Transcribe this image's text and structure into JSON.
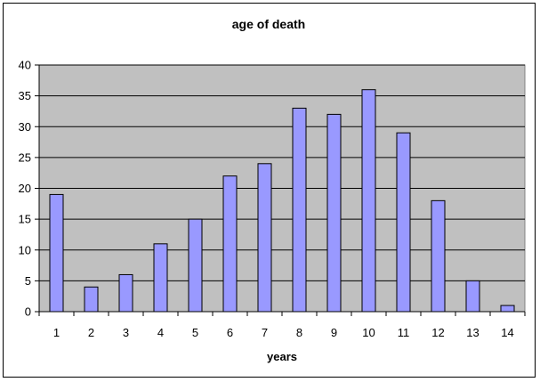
{
  "chart_data": {
    "type": "bar",
    "title": "age of death",
    "xlabel": "years",
    "ylabel": "",
    "categories": [
      "1",
      "2",
      "3",
      "4",
      "5",
      "6",
      "7",
      "8",
      "9",
      "10",
      "11",
      "12",
      "13",
      "14"
    ],
    "values": [
      19,
      4,
      6,
      11,
      15,
      22,
      24,
      33,
      32,
      36,
      29,
      18,
      5,
      1
    ],
    "ylim": [
      0,
      40
    ],
    "yticks": [
      0,
      5,
      10,
      15,
      20,
      25,
      30,
      35,
      40
    ],
    "grid": true,
    "legend": "none",
    "colors": {
      "bar_fill": "#9999ff",
      "bar_stroke": "#000000",
      "plot_background": "#c0c0c0",
      "gridline": "#000000"
    }
  }
}
